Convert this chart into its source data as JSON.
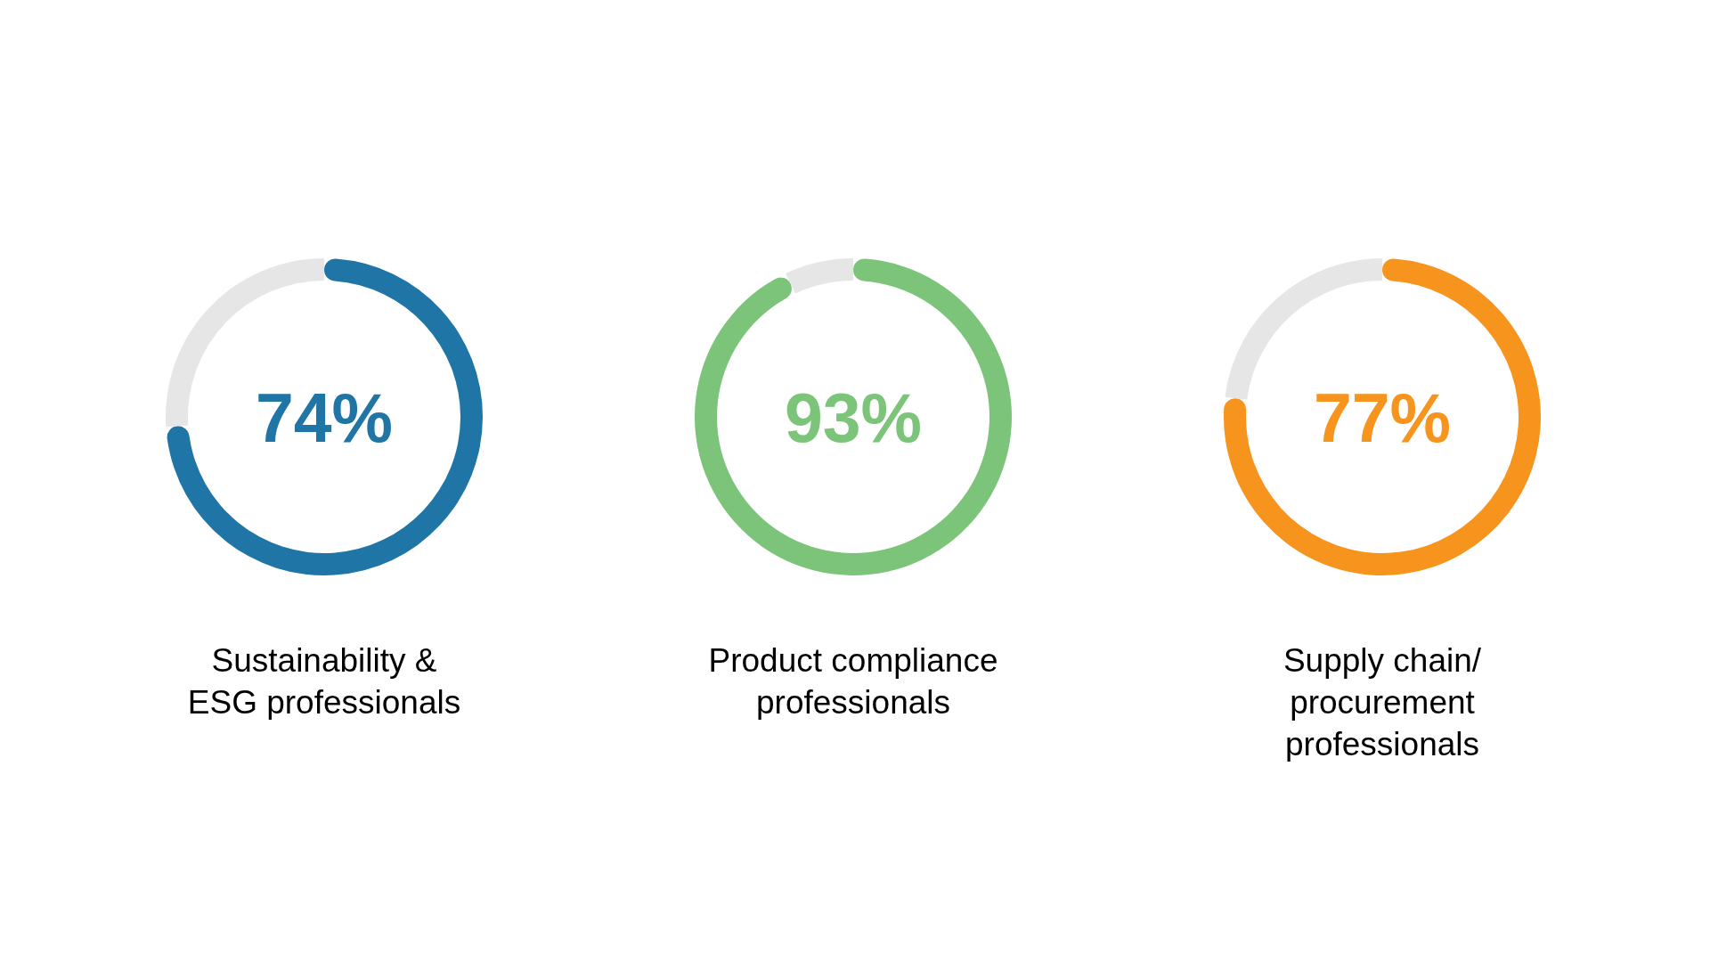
{
  "chart_data": [
    {
      "type": "donut",
      "title": "Sustainability & ESG professionals",
      "categories": [
        null,
        null
      ],
      "values": [
        74,
        26
      ],
      "colors": [
        "#1f75a6",
        "#e6e6e6"
      ],
      "value_labels": [
        "74%",
        null
      ]
    },
    {
      "type": "donut",
      "title": "Product compliance professionals",
      "categories": [
        null,
        null
      ],
      "values": [
        93,
        7
      ],
      "colors": [
        "#7cc47a",
        "#e6e6e6"
      ],
      "value_labels": [
        "93%",
        null
      ]
    },
    {
      "type": "donut",
      "title": "Supply chain/procurement professionals",
      "categories": [
        null,
        null
      ],
      "values": [
        77,
        23
      ],
      "colors": [
        "#f7941e",
        "#e6e6e6"
      ],
      "value_labels": [
        "77%",
        null
      ]
    }
  ]
}
